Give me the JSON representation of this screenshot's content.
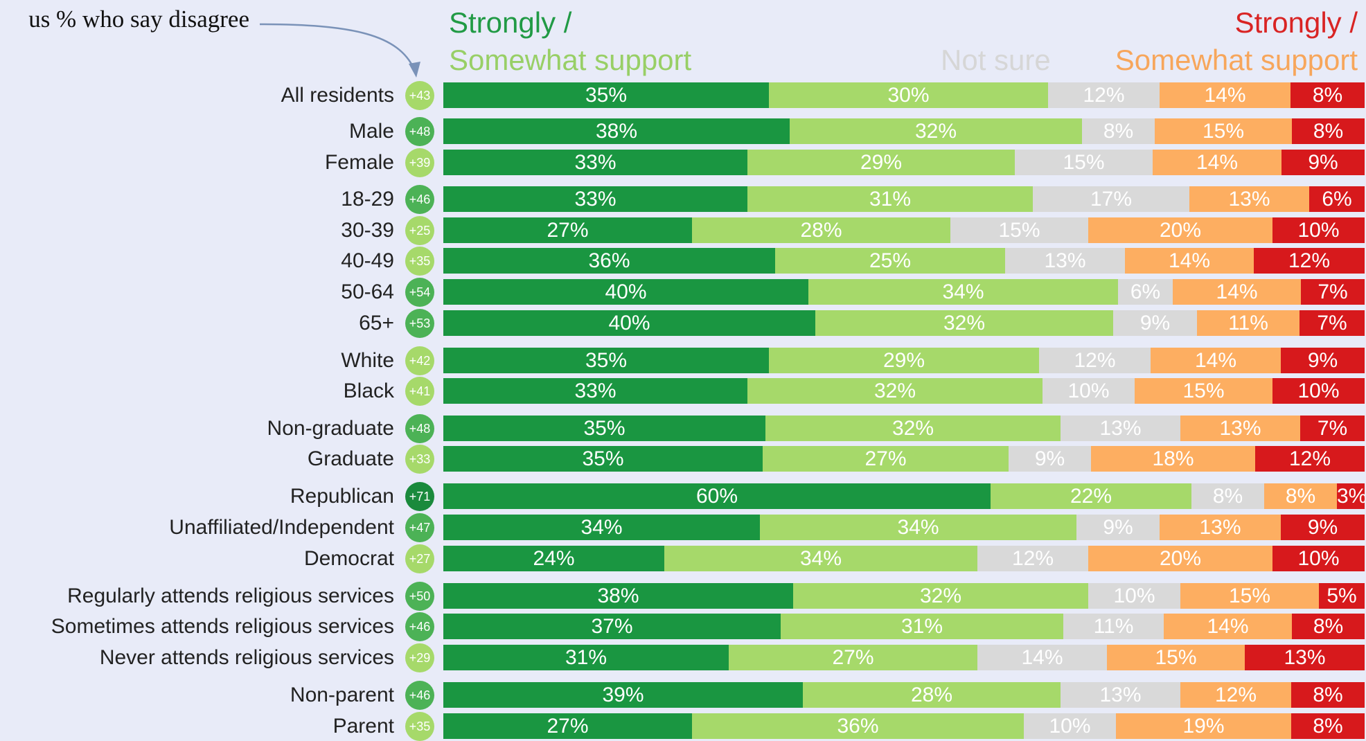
{
  "annotation": "us % who say disagree",
  "legend": {
    "left_line1": "Strongly /",
    "left_line2": "Somewhat support",
    "not_sure": "Not sure",
    "right_line1": "Strongly /",
    "right_line2": "Somewhat support"
  },
  "colors": {
    "strongly_support": "#1a9641",
    "somewhat_support": "#a6d96a",
    "not_sure": "#d9d9d9",
    "somewhat_oppose": "#fdae61",
    "strongly_oppose": "#d7191c",
    "background": "#e8ebf8"
  },
  "chart_data": {
    "type": "bar",
    "orientation": "horizontal",
    "stacked": true,
    "xlim": [
      0,
      100
    ],
    "categories": [
      "All residents",
      "Male",
      "Female",
      "18-29",
      "30-39",
      "40-49",
      "50-64",
      "65+",
      "White",
      "Black",
      "Non-graduate",
      "Graduate",
      "Republican",
      "Unaffiliated/Independent",
      "Democrat",
      "Regularly attends religious services",
      "Sometimes attends religious services",
      "Never attends religious services",
      "Non-parent",
      "Parent"
    ],
    "net_labels": [
      "+43",
      "+48",
      "+39",
      "+46",
      "+25",
      "+35",
      "+54",
      "+53",
      "+42",
      "+41",
      "+48",
      "+33",
      "+71",
      "+47",
      "+27",
      "+50",
      "+46",
      "+29",
      "+46",
      "+35"
    ],
    "series": [
      {
        "values": [
          35,
          38,
          33,
          33,
          27,
          36,
          40,
          40,
          35,
          33,
          35,
          35,
          60,
          34,
          24,
          38,
          37,
          31,
          39,
          27
        ]
      },
      {
        "values": [
          30,
          32,
          29,
          31,
          28,
          25,
          34,
          32,
          29,
          32,
          32,
          27,
          22,
          34,
          34,
          32,
          31,
          27,
          28,
          36
        ]
      },
      {
        "values": [
          12,
          8,
          15,
          17,
          15,
          13,
          6,
          9,
          12,
          10,
          13,
          9,
          8,
          9,
          12,
          10,
          11,
          14,
          13,
          10
        ]
      },
      {
        "values": [
          14,
          15,
          14,
          13,
          20,
          14,
          14,
          11,
          14,
          15,
          13,
          18,
          8,
          13,
          20,
          15,
          14,
          15,
          12,
          19
        ]
      },
      {
        "values": [
          8,
          8,
          9,
          6,
          10,
          12,
          7,
          7,
          9,
          10,
          7,
          12,
          3,
          9,
          10,
          5,
          8,
          13,
          8,
          8
        ]
      }
    ]
  }
}
